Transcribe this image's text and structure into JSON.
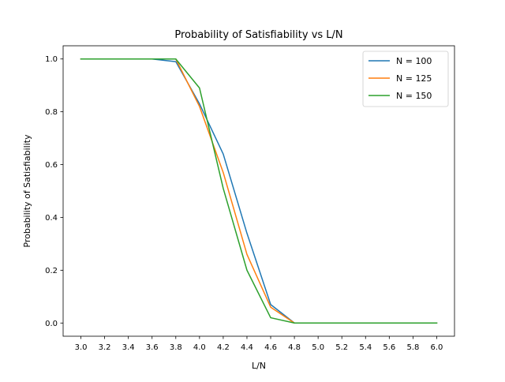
{
  "chart_data": {
    "type": "line",
    "title": "Probability of Satisfiability vs L/N",
    "xlabel": "L/N",
    "ylabel": "Probability of Satisfiability",
    "x": [
      3.0,
      3.2,
      3.4,
      3.6,
      3.8,
      4.0,
      4.2,
      4.4,
      4.6,
      4.8,
      5.0,
      5.2,
      5.4,
      5.6,
      5.8,
      6.0
    ],
    "xticks": [
      "3.0",
      "3.2",
      "3.4",
      "3.6",
      "3.8",
      "4.0",
      "4.2",
      "4.4",
      "4.6",
      "4.8",
      "5.0",
      "5.2",
      "5.4",
      "5.6",
      "5.8",
      "6.0"
    ],
    "yticks": [
      "0.0",
      "0.2",
      "0.4",
      "0.6",
      "0.8",
      "1.0"
    ],
    "xlim": [
      2.85,
      6.15
    ],
    "ylim": [
      -0.05,
      1.05
    ],
    "grid": false,
    "legend_position": "top-right",
    "series": [
      {
        "name": "N = 100",
        "color": "#1f77b4",
        "values": [
          1.0,
          1.0,
          1.0,
          1.0,
          0.99,
          0.83,
          0.64,
          0.34,
          0.07,
          0.0,
          0.0,
          0.0,
          0.0,
          0.0,
          0.0,
          0.0
        ]
      },
      {
        "name": "N = 125",
        "color": "#ff7f0e",
        "values": [
          1.0,
          1.0,
          1.0,
          1.0,
          1.0,
          0.82,
          0.57,
          0.26,
          0.06,
          0.0,
          0.0,
          0.0,
          0.0,
          0.0,
          0.0,
          0.0
        ]
      },
      {
        "name": "N = 150",
        "color": "#2ca02c",
        "values": [
          1.0,
          1.0,
          1.0,
          1.0,
          1.0,
          0.89,
          0.51,
          0.2,
          0.02,
          0.0,
          0.0,
          0.0,
          0.0,
          0.0,
          0.0,
          0.0
        ]
      }
    ]
  }
}
